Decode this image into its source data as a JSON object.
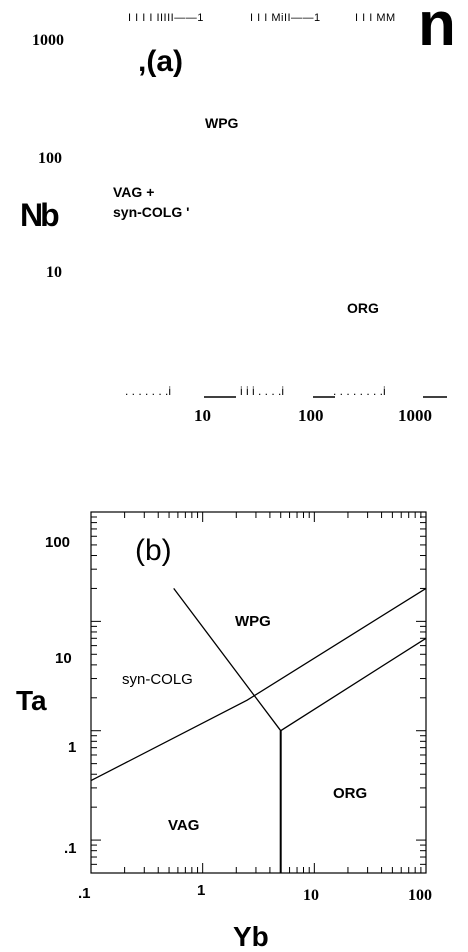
{
  "chart_data": [
    {
      "type": "line",
      "panel_label": ",(a)",
      "ylabel": "Nb",
      "top_axis_text": [
        "I I I I IIIII——1",
        "I I I MiII——1",
        "I I I MM"
      ],
      "corner_text": "n",
      "y_tick_labels": [
        "1000",
        "100",
        "10"
      ],
      "x_tick_labels": [
        "10",
        "100",
        "1000"
      ],
      "bottom_axis_text": [
        ". . . . . . .i",
        "i i i . . . .i",
        ". . . . . . . .i"
      ],
      "region_labels": [
        "WPG",
        "VAG +",
        "syn-COLG '",
        "ORG"
      ],
      "xscale": "log",
      "yscale": "log"
    },
    {
      "type": "line",
      "panel_label": "(b)",
      "xlabel": "Yb",
      "ylabel": "Ta",
      "xscale": "log",
      "yscale": "log",
      "xlim": [
        0.1,
        100
      ],
      "ylim": [
        0.05,
        100
      ],
      "x_tick_labels": [
        ".1",
        "1",
        "10",
        "100"
      ],
      "y_tick_labels": [
        "100",
        "10",
        "1",
        ".1"
      ],
      "region_labels": [
        "WPG",
        "syn-COLG",
        "ORG",
        "VAG"
      ],
      "boundaries": [
        {
          "x": [
            0.1,
            2.5,
            100
          ],
          "y": [
            0.35,
            1.9,
            20
          ]
        },
        {
          "x": [
            0.55,
            5,
            100
          ],
          "y": [
            20,
            1,
            7
          ]
        },
        {
          "x": [
            5,
            5
          ],
          "y": [
            1,
            0.05
          ]
        }
      ],
      "grid": false
    }
  ]
}
